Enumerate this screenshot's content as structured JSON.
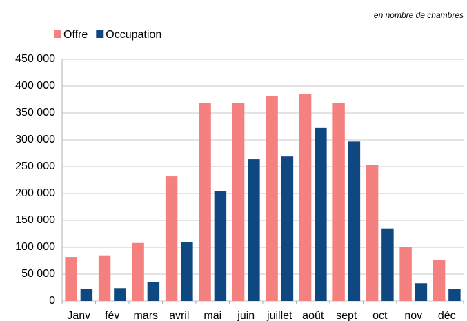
{
  "chart_data": {
    "type": "bar",
    "subtitle": "en nombre de chambres",
    "categories": [
      "Janv",
      "fév",
      "mars",
      "avril",
      "mai",
      "juin",
      "juillet",
      "août",
      "sept",
      "oct",
      "nov",
      "déc"
    ],
    "series": [
      {
        "name": "Offre",
        "color": "#f4817f",
        "values": [
          82000,
          85000,
          108000,
          232000,
          369000,
          368000,
          381000,
          385000,
          368000,
          253000,
          101000,
          77000
        ]
      },
      {
        "name": "Occupation",
        "color": "#0f4780",
        "values": [
          22000,
          24000,
          35000,
          110000,
          205000,
          264000,
          269000,
          322000,
          297000,
          135000,
          33000,
          23000
        ]
      }
    ],
    "ylim": [
      0,
      450000
    ],
    "yticks": [
      0,
      {
        "value": 50000,
        "label": "50 000"
      },
      {
        "value": 100000,
        "label": "100 000"
      },
      {
        "value": 150000,
        "label": "150 000"
      },
      {
        "value": 200000,
        "label": "200 000"
      },
      {
        "value": 250000,
        "label": "250 000"
      },
      {
        "value": 300000,
        "label": "300 000"
      },
      {
        "value": 350000,
        "label": "350 000"
      },
      {
        "value": 400000,
        "label": "400 000"
      },
      {
        "value": 450000,
        "label": "450 000"
      }
    ],
    "grid": true
  }
}
